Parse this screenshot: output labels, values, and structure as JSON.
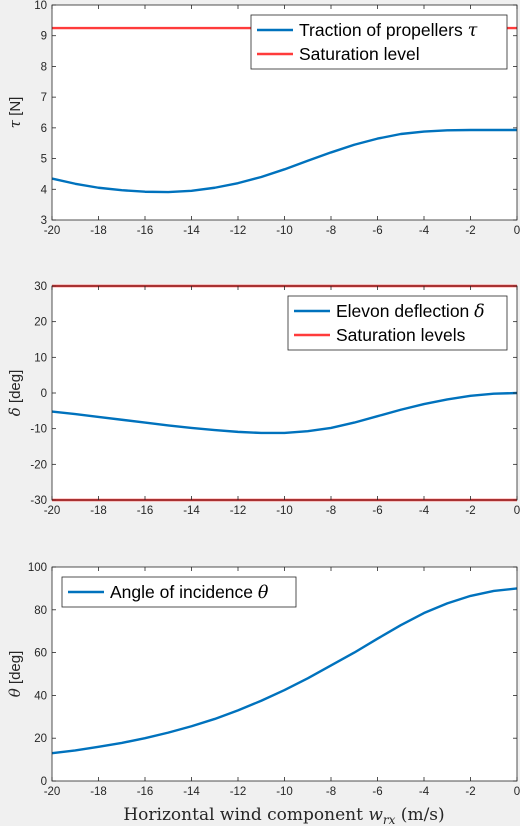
{
  "chart_data": [
    {
      "type": "line",
      "ylabel": "τ [N]",
      "xlim": [
        -20,
        0
      ],
      "ylim": [
        3,
        10
      ],
      "xticks": [
        "-20",
        "-18",
        "-16",
        "-14",
        "-12",
        "-10",
        "-8",
        "-6",
        "-4",
        "-2",
        "0"
      ],
      "yticks": [
        "3",
        "4",
        "5",
        "6",
        "7",
        "8",
        "9",
        "10"
      ],
      "legend_position": "top-right",
      "series": [
        {
          "name": "Traction of propellers τ",
          "color": "#0072bd",
          "x": [
            -20,
            -19,
            -18,
            -17,
            -16,
            -15,
            -14,
            -13,
            -12,
            -11,
            -10,
            -9,
            -8,
            -7,
            -6,
            -5,
            -4,
            -3,
            -2,
            -1,
            0
          ],
          "y": [
            4.35,
            4.18,
            4.05,
            3.97,
            3.92,
            3.91,
            3.95,
            4.05,
            4.2,
            4.4,
            4.65,
            4.93,
            5.2,
            5.45,
            5.65,
            5.8,
            5.88,
            5.92,
            5.93,
            5.93,
            5.93
          ]
        },
        {
          "name": "Saturation level",
          "color": "#ff3b3b",
          "x": [
            -20,
            0
          ],
          "y": [
            9.25,
            9.25
          ]
        }
      ]
    },
    {
      "type": "line",
      "ylabel": "δ [deg]",
      "xlim": [
        -20,
        0
      ],
      "ylim": [
        -30,
        30
      ],
      "xticks": [
        "-20",
        "-18",
        "-16",
        "-14",
        "-12",
        "-10",
        "-8",
        "-6",
        "-4",
        "-2",
        "0"
      ],
      "yticks": [
        "-30",
        "-20",
        "-10",
        "0",
        "10",
        "20",
        "30"
      ],
      "legend_position": "top-right",
      "series": [
        {
          "name": "Elevon deflection δ",
          "color": "#0072bd",
          "x": [
            -20,
            -19,
            -18,
            -17,
            -16,
            -15,
            -14,
            -13,
            -12,
            -11,
            -10,
            -9,
            -8,
            -7,
            -6,
            -5,
            -4,
            -3,
            -2,
            -1,
            0
          ],
          "y": [
            -5.2,
            -5.9,
            -6.7,
            -7.5,
            -8.3,
            -9.1,
            -9.8,
            -10.4,
            -10.9,
            -11.2,
            -11.2,
            -10.7,
            -9.8,
            -8.3,
            -6.5,
            -4.7,
            -3.1,
            -1.8,
            -0.8,
            -0.2,
            0
          ]
        },
        {
          "name": "Saturation levels",
          "color": "#ff3b3b",
          "x": [
            -20,
            0
          ],
          "y": [
            30,
            30
          ]
        },
        {
          "name": "",
          "color": "#ff3b3b",
          "x": [
            -20,
            0
          ],
          "y": [
            -30,
            -30
          ]
        }
      ]
    },
    {
      "type": "line",
      "ylabel": "θ [deg]",
      "xlabel": "Horizontal wind component w_rx (m/s)",
      "xlim": [
        -20,
        0
      ],
      "ylim": [
        0,
        100
      ],
      "xticks": [
        "-20",
        "-18",
        "-16",
        "-14",
        "-12",
        "-10",
        "-8",
        "-6",
        "-4",
        "-2",
        "0"
      ],
      "yticks": [
        "0",
        "20",
        "40",
        "60",
        "80",
        "100"
      ],
      "legend_position": "top-left",
      "series": [
        {
          "name": "Angle of incidence θ",
          "color": "#0072bd",
          "x": [
            -20,
            -19,
            -18,
            -17,
            -16,
            -15,
            -14,
            -13,
            -12,
            -11,
            -10,
            -9,
            -8,
            -7,
            -6,
            -5,
            -4,
            -3,
            -2,
            -1,
            0
          ],
          "y": [
            13,
            14.3,
            16,
            17.8,
            20,
            22.6,
            25.6,
            29,
            33,
            37.5,
            42.5,
            48,
            54,
            60,
            66.5,
            72.8,
            78.5,
            83,
            86.5,
            88.8,
            90
          ]
        }
      ]
    }
  ],
  "xlabel_parts": {
    "text": "Horizontal wind component ",
    "var": "w",
    "sub": "rx",
    "unit": " (m/s)"
  }
}
